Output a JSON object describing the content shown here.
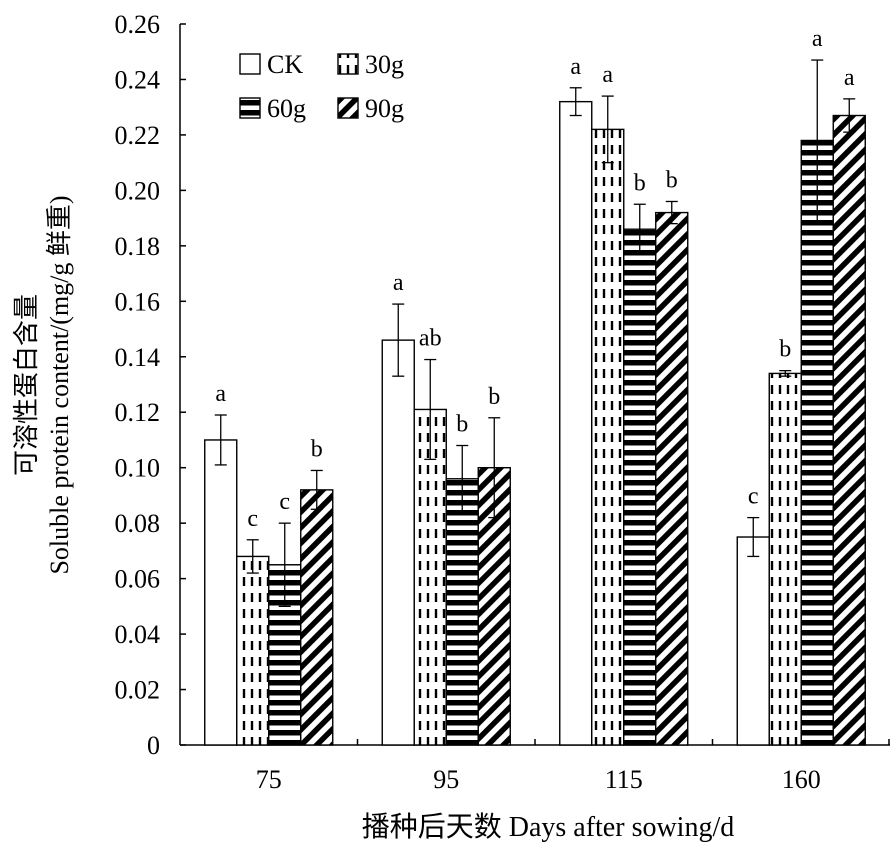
{
  "chart_data": {
    "type": "bar",
    "ylabel_cn": "可溶性蛋白含量",
    "ylabel_en": "Soluble protein content/(mg/g 鲜重)",
    "xlabel": "播种后天数 Days after sowing/d",
    "ylim": [
      0,
      0.26
    ],
    "yticks": [
      "0",
      "0.02",
      "0.04",
      "0.06",
      "0.08",
      "0.10",
      "0.12",
      "0.14",
      "0.16",
      "0.18",
      "0.20",
      "0.22",
      "0.24",
      "0.26"
    ],
    "categories": [
      "75",
      "95",
      "115",
      "160"
    ],
    "legend_placement": "top-left",
    "series": [
      {
        "name": "CK",
        "pattern": "blank",
        "values": [
          0.11,
          0.146,
          0.232,
          0.075
        ],
        "errors": [
          0.009,
          0.013,
          0.005,
          0.007
        ],
        "letters": [
          "a",
          "a",
          "a",
          "c"
        ]
      },
      {
        "name": "30g",
        "pattern": "dashed",
        "values": [
          0.068,
          0.121,
          0.222,
          0.134
        ],
        "errors": [
          0.006,
          0.018,
          0.012,
          0.001
        ],
        "letters": [
          "c",
          "ab",
          "a",
          "b"
        ]
      },
      {
        "name": "60g",
        "pattern": "horizontal",
        "values": [
          0.065,
          0.096,
          0.186,
          0.218
        ],
        "errors": [
          0.015,
          0.012,
          0.009,
          0.029
        ],
        "letters": [
          "c",
          "b",
          "b",
          "a"
        ]
      },
      {
        "name": "90g",
        "pattern": "diagonal",
        "values": [
          0.092,
          0.1,
          0.192,
          0.227
        ],
        "errors": [
          0.007,
          0.018,
          0.004,
          0.006
        ],
        "letters": [
          "b",
          "b",
          "b",
          "a"
        ]
      }
    ]
  }
}
